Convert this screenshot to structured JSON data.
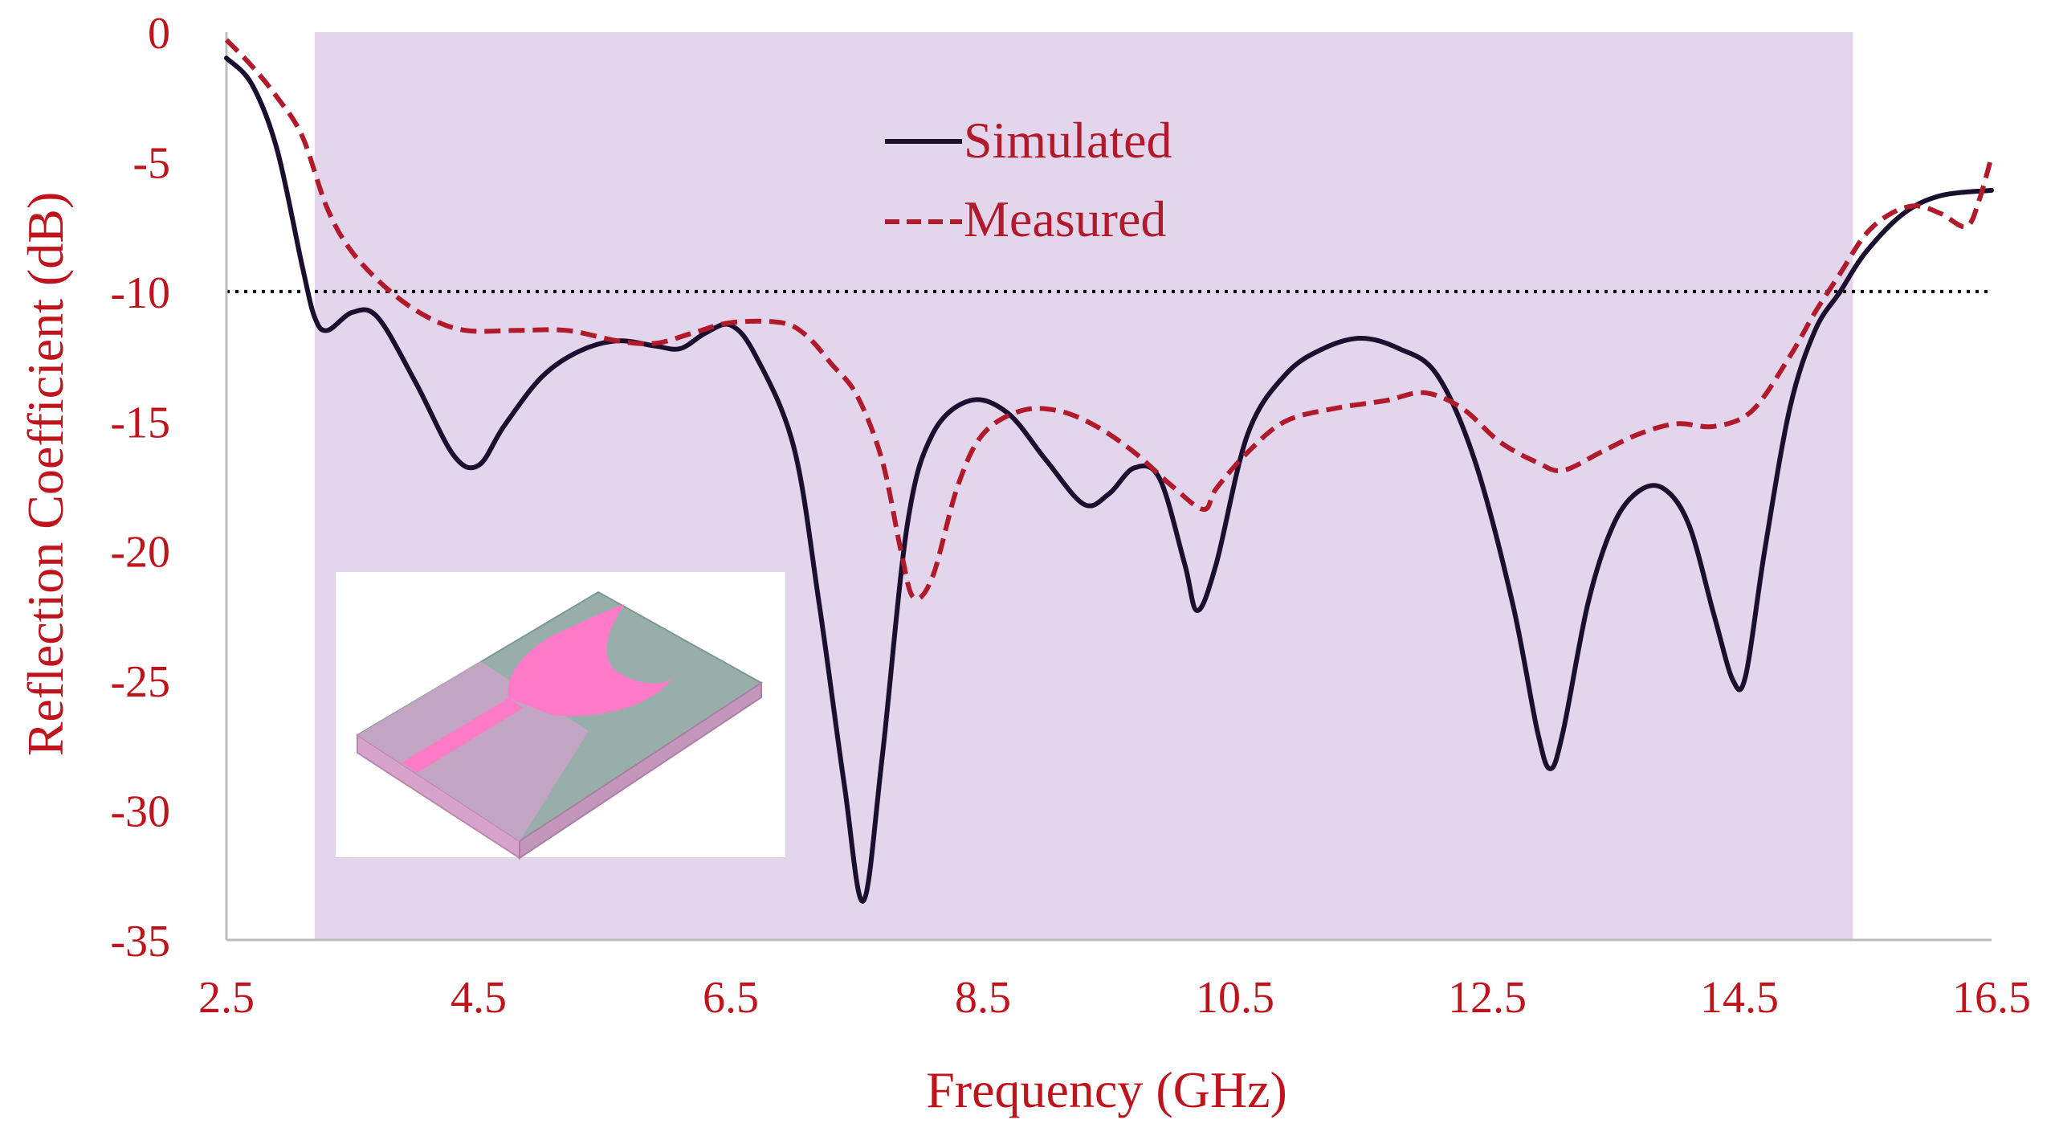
{
  "chart_data": {
    "type": "line",
    "title": "",
    "xlabel": "Frequency (GHz)",
    "ylabel": "Reflection Coefficient (dB)",
    "xlim": [
      2.5,
      16.5
    ],
    "ylim": [
      -35,
      0
    ],
    "xticks": [
      "2.5",
      "4.5",
      "6.5",
      "8.5",
      "10.5",
      "12.5",
      "14.5",
      "16.5"
    ],
    "yticks": [
      "0",
      "-5",
      "-10",
      "-15",
      "-20",
      "-25",
      "-30",
      "-35"
    ],
    "threshold": {
      "y": -10,
      "style": "dotted"
    },
    "shaded_band": {
      "x_from": 3.2,
      "x_to": 15.4
    },
    "legend_position": "top-center",
    "inset": "antenna-3d-model",
    "series": [
      {
        "name": "Simulated",
        "color": "#1a0f2e",
        "dash": "solid",
        "points": [
          [
            2.5,
            -1.0
          ],
          [
            2.7,
            -2.0
          ],
          [
            2.9,
            -4.5
          ],
          [
            3.1,
            -9.0
          ],
          [
            3.2,
            -11.0
          ],
          [
            3.3,
            -11.5
          ],
          [
            3.5,
            -10.8
          ],
          [
            3.7,
            -11.0
          ],
          [
            4.0,
            -13.5
          ],
          [
            4.3,
            -16.3
          ],
          [
            4.5,
            -16.7
          ],
          [
            4.7,
            -15.2
          ],
          [
            5.0,
            -13.3
          ],
          [
            5.3,
            -12.3
          ],
          [
            5.6,
            -11.9
          ],
          [
            5.9,
            -12.1
          ],
          [
            6.1,
            -12.2
          ],
          [
            6.3,
            -11.6
          ],
          [
            6.5,
            -11.3
          ],
          [
            6.7,
            -12.5
          ],
          [
            7.0,
            -16.0
          ],
          [
            7.2,
            -22.0
          ],
          [
            7.4,
            -29.0
          ],
          [
            7.55,
            -33.5
          ],
          [
            7.7,
            -28.0
          ],
          [
            7.9,
            -19.0
          ],
          [
            8.1,
            -15.5
          ],
          [
            8.4,
            -14.2
          ],
          [
            8.7,
            -14.7
          ],
          [
            9.0,
            -16.5
          ],
          [
            9.3,
            -18.2
          ],
          [
            9.5,
            -17.8
          ],
          [
            9.7,
            -16.8
          ],
          [
            9.9,
            -17.2
          ],
          [
            10.1,
            -20.5
          ],
          [
            10.2,
            -22.3
          ],
          [
            10.35,
            -20.5
          ],
          [
            10.6,
            -15.5
          ],
          [
            10.9,
            -13.2
          ],
          [
            11.2,
            -12.2
          ],
          [
            11.5,
            -11.8
          ],
          [
            11.8,
            -12.2
          ],
          [
            12.1,
            -13.2
          ],
          [
            12.4,
            -16.5
          ],
          [
            12.7,
            -22.0
          ],
          [
            12.9,
            -27.0
          ],
          [
            13.0,
            -28.4
          ],
          [
            13.1,
            -27.0
          ],
          [
            13.3,
            -22.0
          ],
          [
            13.5,
            -19.0
          ],
          [
            13.7,
            -17.7
          ],
          [
            13.9,
            -17.6
          ],
          [
            14.1,
            -19.0
          ],
          [
            14.3,
            -22.5
          ],
          [
            14.45,
            -25.0
          ],
          [
            14.55,
            -24.8
          ],
          [
            14.7,
            -20.0
          ],
          [
            14.9,
            -14.5
          ],
          [
            15.1,
            -11.5
          ],
          [
            15.3,
            -10.0
          ],
          [
            15.5,
            -8.5
          ],
          [
            15.8,
            -7.0
          ],
          [
            16.1,
            -6.3
          ],
          [
            16.5,
            -6.1
          ]
        ]
      },
      {
        "name": "Measured",
        "color": "#b01a2a",
        "dash": "dashed",
        "points": [
          [
            2.5,
            -0.3
          ],
          [
            2.7,
            -1.3
          ],
          [
            2.9,
            -2.5
          ],
          [
            3.1,
            -4.0
          ],
          [
            3.3,
            -6.8
          ],
          [
            3.5,
            -8.5
          ],
          [
            3.8,
            -10.0
          ],
          [
            4.1,
            -11.0
          ],
          [
            4.4,
            -11.5
          ],
          [
            4.8,
            -11.5
          ],
          [
            5.2,
            -11.5
          ],
          [
            5.6,
            -11.9
          ],
          [
            5.9,
            -12.0
          ],
          [
            6.2,
            -11.6
          ],
          [
            6.5,
            -11.2
          ],
          [
            6.9,
            -11.2
          ],
          [
            7.1,
            -11.7
          ],
          [
            7.3,
            -12.8
          ],
          [
            7.5,
            -14.0
          ],
          [
            7.7,
            -16.5
          ],
          [
            7.85,
            -20.0
          ],
          [
            7.95,
            -21.8
          ],
          [
            8.1,
            -21.0
          ],
          [
            8.3,
            -17.5
          ],
          [
            8.5,
            -15.5
          ],
          [
            8.8,
            -14.6
          ],
          [
            9.1,
            -14.6
          ],
          [
            9.4,
            -15.2
          ],
          [
            9.7,
            -16.2
          ],
          [
            10.0,
            -17.5
          ],
          [
            10.25,
            -18.4
          ],
          [
            10.35,
            -17.6
          ],
          [
            10.6,
            -16.2
          ],
          [
            10.9,
            -15.0
          ],
          [
            11.3,
            -14.5
          ],
          [
            11.7,
            -14.2
          ],
          [
            12.0,
            -13.9
          ],
          [
            12.3,
            -14.5
          ],
          [
            12.6,
            -15.8
          ],
          [
            12.9,
            -16.6
          ],
          [
            13.1,
            -16.9
          ],
          [
            13.4,
            -16.2
          ],
          [
            13.7,
            -15.5
          ],
          [
            14.0,
            -15.1
          ],
          [
            14.3,
            -15.2
          ],
          [
            14.6,
            -14.6
          ],
          [
            14.9,
            -12.5
          ],
          [
            15.1,
            -10.8
          ],
          [
            15.3,
            -9.3
          ],
          [
            15.5,
            -7.8
          ],
          [
            15.7,
            -7.0
          ],
          [
            15.9,
            -6.7
          ],
          [
            16.1,
            -7.0
          ],
          [
            16.3,
            -7.5
          ],
          [
            16.4,
            -6.5
          ],
          [
            16.5,
            -4.8
          ]
        ]
      }
    ]
  }
}
